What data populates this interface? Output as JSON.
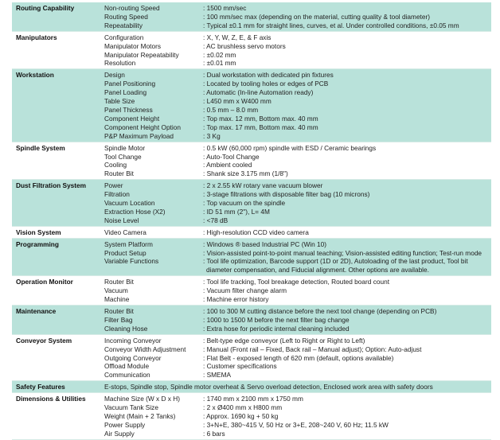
{
  "accent_color": "#b9e2da",
  "sections": [
    {
      "category": "Routing Capability",
      "shaded": true,
      "rows": [
        {
          "label": "Non-routing Speed",
          "value": ": 1500 mm/sec"
        },
        {
          "label": "Routing Speed",
          "value": ": 100 mm/sec max (depending on the material, cutting quality & tool diameter)"
        },
        {
          "label": "Repeatability",
          "value": ": Typical ±0.1 mm for straight lines, curves, et al. Under controlled conditions, ±0.05 mm"
        }
      ]
    },
    {
      "category": "Manipulators",
      "shaded": false,
      "rows": [
        {
          "label": "Configuration",
          "value": ": X, Y, W, Z, E, & F axis"
        },
        {
          "label": "Manipulator Motors",
          "value": ": AC brushless servo motors"
        },
        {
          "label": "Manipulator Repeatability",
          "value": ": ±0.02 mm"
        },
        {
          "label": "Resolution",
          "value": ": ±0.01 mm"
        }
      ]
    },
    {
      "category": "Workstation",
      "shaded": true,
      "rows": [
        {
          "label": "Design",
          "value": ": Dual workstation with dedicated pin fixtures"
        },
        {
          "label": "Panel Positioning",
          "value": ": Located by tooling holes or edges of PCB"
        },
        {
          "label": "Panel Loading",
          "value": ": Automatic (In-line Automation ready)"
        },
        {
          "label": "Table Size",
          "value": ": L450 mm x W400 mm"
        },
        {
          "label": "Panel Thickness",
          "value": ": 0.5 mm – 8.0 mm"
        },
        {
          "label": "Component Height",
          "value": ": Top max. 12 mm, Bottom max. 40 mm"
        },
        {
          "label": "Component Height Option",
          "value": ": Top max. 17 mm, Bottom max. 40 mm"
        },
        {
          "label": "P&P Maximum Payload",
          "value": ": 3 Kg"
        }
      ]
    },
    {
      "category": "Spindle System",
      "shaded": false,
      "rows": [
        {
          "label": "Spindle Motor",
          "value": ": 0.5 kW (60,000 rpm) spindle with ESD / Ceramic bearings"
        },
        {
          "label": "Tool Change",
          "value": ": Auto-Tool Change"
        },
        {
          "label": "Cooling",
          "value": ": Ambient cooled"
        },
        {
          "label": "Router Bit",
          "value": ": Shank size 3.175 mm (1/8\")"
        }
      ]
    },
    {
      "category": "Dust Filtration System",
      "shaded": true,
      "rows": [
        {
          "label": "Power",
          "value": ": 2 x 2.55 kW rotary vane vacuum blower"
        },
        {
          "label": "Filtration",
          "value": ": 3-stage filtrations with disposable filter bag (10 microns)"
        },
        {
          "label": "Vacuum Location",
          "value": ": Top vacuum on the spindle"
        },
        {
          "label": "Extraction Hose (X2)",
          "value": ": ID 51 mm (2\"), L= 4M"
        },
        {
          "label": "Noise Level",
          "value": ": <78 dB"
        }
      ]
    },
    {
      "category": "Vision System",
      "shaded": false,
      "rows": [
        {
          "label": "Video Camera",
          "value": ": High-resolution CCD video camera"
        }
      ]
    },
    {
      "category": "Programming",
      "shaded": true,
      "rows": [
        {
          "label": "System Platform",
          "value": ": Windows ® based Industrial PC (Win 10)"
        },
        {
          "label": "Product Setup",
          "value": ": Vision-assisted point-to-point manual teaching; Vision-assisted editing function; Test-run mode"
        },
        {
          "label": "Variable Functions",
          "value": ": Tool life optimization, Barcode support (1D or 2D), Autoloading of the last product, Tool bit diameter compensation, and Fiducial alignment. Other options are available."
        }
      ]
    },
    {
      "category": "Operation Monitor",
      "shaded": false,
      "rows": [
        {
          "label": "Router Bit",
          "value": ": Tool life tracking, Tool breakage detection, Routed board count"
        },
        {
          "label": "Vacuum",
          "value": ": Vacuum filter change alarm"
        },
        {
          "label": "Machine",
          "value": ": Machine error history"
        }
      ]
    },
    {
      "category": "Maintenance",
      "shaded": true,
      "rows": [
        {
          "label": "Router Bit",
          "value": ": 100 to 300 M cutting distance before the next tool change (depending on PCB)"
        },
        {
          "label": "Filter Bag",
          "value": ": 1000 to 1500 M before the next filter bag change"
        },
        {
          "label": "Cleaning Hose",
          "value": ": Extra hose for periodic internal cleaning included"
        }
      ]
    },
    {
      "category": "Conveyor System",
      "shaded": false,
      "rows": [
        {
          "label": "Incoming Conveyor",
          "value": ": Belt-type edge conveyor (Left to Right or Right to Left)"
        },
        {
          "label": "Conveyor Width Adjustment",
          "value": ": Manual (Front rail – Fixed, Back rail – Manual adjust); Option: Auto-adjust"
        },
        {
          "label": "Outgoing Conveyor",
          "value": ": Flat Belt - exposed length of 620 mm (default, options available)"
        },
        {
          "label": "Offload Module",
          "value": ": Customer specifications"
        },
        {
          "label": "Communication",
          "value": ": SMEMA"
        }
      ]
    },
    {
      "category": "Safety Features",
      "shaded": true,
      "full": "E-stops, Spindle stop, Spindle motor overheat & Servo overload detection, Enclosed work area with safety doors",
      "rows": []
    },
    {
      "category": "Dimensions & Utilities",
      "shaded": false,
      "rows": [
        {
          "label": "Machine Size (W x D x H)",
          "value": ": 1740 mm x 2100 mm x 1750 mm"
        },
        {
          "label": "Vacuum Tank Size",
          "value": ": 2 x Ø400 mm x H800 mm"
        },
        {
          "label": "Weight (Main + 2 Tanks)",
          "value": ": Approx. 1690 kg + 50 kg"
        },
        {
          "label": "Power Supply",
          "value": ": 3+N+E, 380~415 V, 50 Hz or 3+E, 208~240 V, 60 Hz; 11.5 kW"
        },
        {
          "label": "Air Supply",
          "value": ": 6 bars"
        }
      ]
    }
  ]
}
